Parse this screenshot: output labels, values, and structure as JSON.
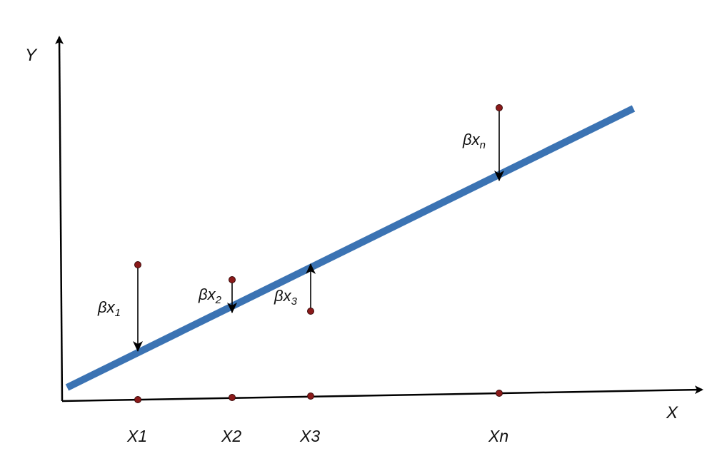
{
  "axes": {
    "y_label": "Y",
    "x_label": "X"
  },
  "x_ticks": [
    "X1",
    "X2",
    "X3",
    "Xn"
  ],
  "residuals": [
    {
      "symbol": "βx",
      "subscript": "1",
      "direction": "down"
    },
    {
      "symbol": "βx",
      "subscript": "2",
      "direction": "down"
    },
    {
      "symbol": "βx",
      "subscript": "3",
      "direction": "up"
    },
    {
      "symbol": "βx",
      "subscript": "n",
      "direction": "down"
    }
  ],
  "colors": {
    "regression_line": "#3b73b3",
    "data_point": "#8b1a1a",
    "axis": "#000000",
    "arrow": "#000000"
  }
}
